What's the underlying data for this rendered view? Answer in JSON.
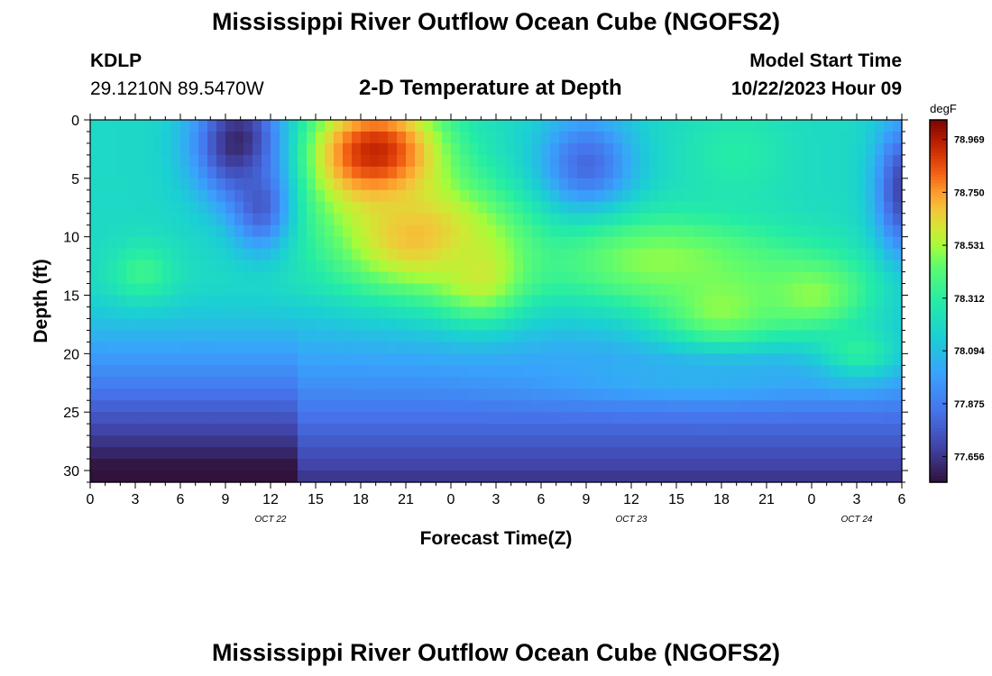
{
  "header": {
    "title": "Mississippi River Outflow Ocean Cube (NGOFS2)",
    "station_id": "KDLP",
    "coordinates": "29.1210N  89.5470W",
    "plot_title": "2-D Temperature at Depth",
    "model_start_label": "Model Start Time",
    "model_start_value": "10/22/2023 Hour 09"
  },
  "footer": {
    "title": "Mississippi River Outflow Ocean Cube (NGOFS2)"
  },
  "chart_data": {
    "type": "heatmap",
    "title": "2-D Temperature at Depth",
    "xlabel": "Forecast Time(Z)",
    "ylabel": "Depth (ft)",
    "x_tick_labels": [
      "0",
      "3",
      "6",
      "9",
      "12",
      "15",
      "18",
      "21",
      "0",
      "3",
      "6",
      "9",
      "12",
      "15",
      "18",
      "21",
      "0",
      "3",
      "6"
    ],
    "date_labels": [
      {
        "label": "OCT 22",
        "at_tick": 4
      },
      {
        "label": "OCT 23",
        "at_tick": 12
      },
      {
        "label": "OCT 24",
        "at_tick": 17
      }
    ],
    "y_ticks": [
      0,
      5,
      10,
      15,
      20,
      25,
      30
    ],
    "ylim": [
      0,
      31
    ],
    "y_inverted": true,
    "x_range_hours": [
      0,
      54
    ],
    "colorbar": {
      "unit": "degF",
      "ticks": [
        "78.969",
        "78.750",
        "78.531",
        "78.312",
        "78.094",
        "77.875",
        "77.656"
      ],
      "range": [
        77.55,
        79.05
      ]
    },
    "features": [
      {
        "t": 10,
        "d": 2,
        "value": 77.58,
        "sx": 3.2,
        "sy": 5.0
      },
      {
        "t": 11.5,
        "d": 7,
        "value": 77.7,
        "sx": 2.0,
        "sy": 4.0
      },
      {
        "t": 33,
        "d": 4,
        "value": 77.8,
        "sx": 3.2,
        "sy": 4.5
      },
      {
        "t": 54,
        "d": 6,
        "value": 77.7,
        "sx": 1.8,
        "sy": 6.0
      },
      {
        "t": 3.5,
        "d": 13,
        "value": 78.36,
        "sx": 2.2,
        "sy": 2.5
      },
      {
        "t": 19,
        "d": 3,
        "value": 78.97,
        "sx": 4.5,
        "sy": 5.0
      },
      {
        "t": 22,
        "d": 10,
        "value": 78.7,
        "sx": 6.0,
        "sy": 5.0
      },
      {
        "t": 26,
        "d": 13,
        "value": 78.6,
        "sx": 3.0,
        "sy": 4.0
      },
      {
        "t": 38,
        "d": 12,
        "value": 78.5,
        "sx": 8.0,
        "sy": 4.0
      },
      {
        "t": 42,
        "d": 16,
        "value": 78.5,
        "sx": 4.5,
        "sy": 4.0
      },
      {
        "t": 48,
        "d": 15,
        "value": 78.5,
        "sx": 4.0,
        "sy": 3.5
      },
      {
        "t": 51,
        "d": 20,
        "value": 78.35,
        "sx": 3.0,
        "sy": 2.5
      },
      {
        "t": 43,
        "d": 3,
        "value": 78.3,
        "sx": 3.5,
        "sy": 4.0
      },
      {
        "t": 40,
        "d": 22,
        "value": 78.05,
        "sx": 10.0,
        "sy": 2.0
      }
    ]
  }
}
